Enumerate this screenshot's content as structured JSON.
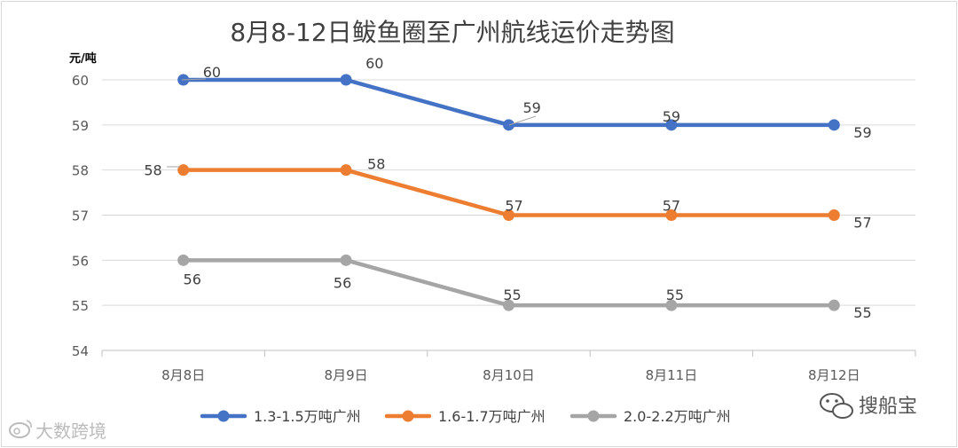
{
  "chart_data": {
    "type": "line",
    "title": "8月8-12日鲅鱼圈至广州航线运价走势图",
    "ylabel": "元/吨",
    "xlabel": "",
    "categories": [
      "8月8日",
      "8月9日",
      "8月10日",
      "8月11日",
      "8月12日"
    ],
    "ylim": [
      54,
      60
    ],
    "yticks": [
      54,
      55,
      56,
      57,
      58,
      59,
      60
    ],
    "grid": true,
    "legend_position": "bottom",
    "series": [
      {
        "name": "1.3-1.5万吨广州",
        "values": [
          60,
          60,
          59,
          59,
          59
        ],
        "color": "#4472c4"
      },
      {
        "name": "1.6-1.7万吨广州",
        "values": [
          58,
          58,
          57,
          57,
          57
        ],
        "color": "#ed7d31"
      },
      {
        "name": "2.0-2.2万吨广州",
        "values": [
          56,
          56,
          55,
          55,
          55
        ],
        "color": "#a5a5a5"
      }
    ]
  },
  "watermarks": {
    "right": "搜船宝",
    "left": "大数跨境",
    "right_icon": "wechat-icon",
    "left_icon": "weibo-icon"
  }
}
